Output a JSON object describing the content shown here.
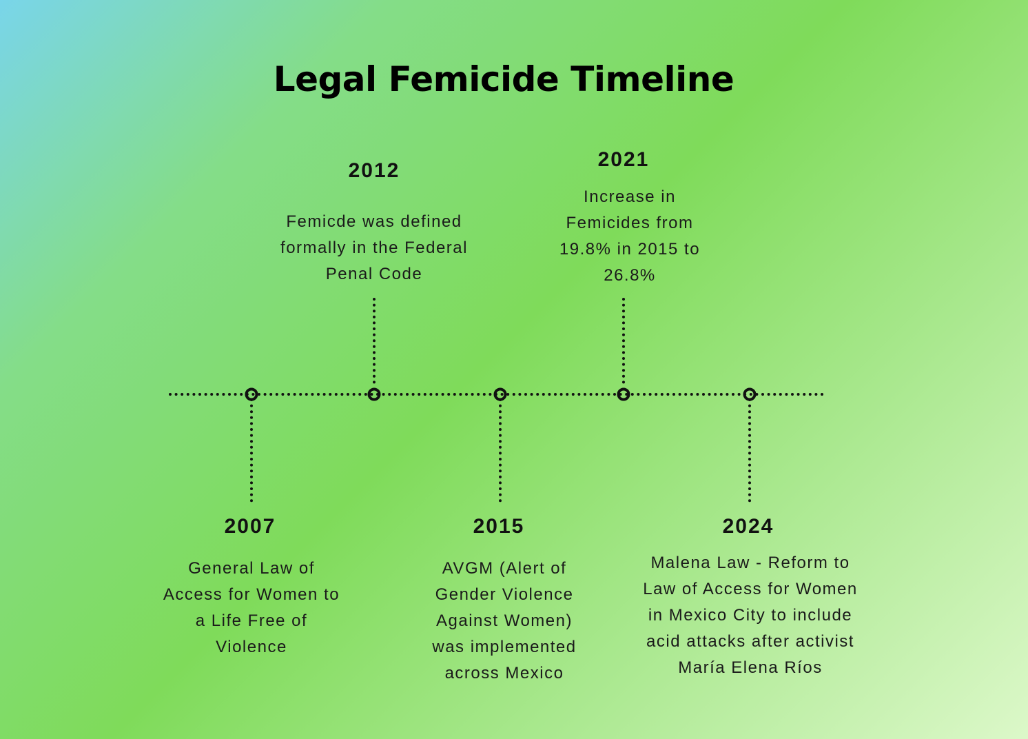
{
  "title": "Legal Femicide Timeline",
  "events": [
    {
      "year": "2007",
      "description": "General Law of Access for Women to a Life Free of Violence"
    },
    {
      "year": "2012",
      "description": "Femicde was defined formally in the Federal Penal Code"
    },
    {
      "year": "2015",
      "description": "AVGM (Alert of Gender Violence Against Women) was implemented across Mexico"
    },
    {
      "year": "2021",
      "description": "Increase in Femicides from 19.8% in 2015 to 26.8%"
    },
    {
      "year": "2024",
      "description": "Malena Law - Reform to Law of Access for Women in Mexico City to include acid attacks after activist María Elena Ríos"
    }
  ],
  "colors": {
    "line": "#111111",
    "text": "#111111"
  }
}
